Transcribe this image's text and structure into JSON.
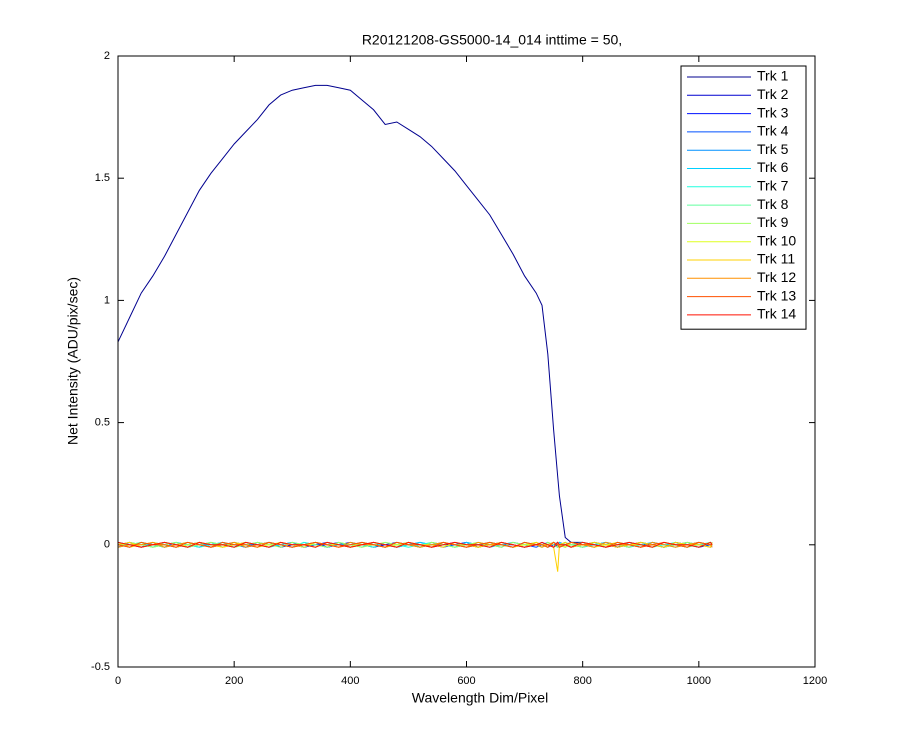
{
  "chart_data": {
    "type": "line",
    "title": "R20121208-GS5000-14_014 inttime = 50,",
    "x_label": "Wavelength Dim/Pixel",
    "y_label": "Net Intensity (ADU/pix/sec)",
    "xlim": [
      0,
      1200
    ],
    "xticks": [
      0,
      200,
      400,
      600,
      800,
      1000,
      1200
    ],
    "ylim": [
      -0.5,
      2
    ],
    "yticks": [
      -0.5,
      0,
      0.5,
      1,
      1.5,
      2
    ],
    "legend_position": "upper-right",
    "x": [
      0,
      20,
      40,
      60,
      80,
      100,
      120,
      140,
      160,
      180,
      200,
      220,
      240,
      260,
      280,
      300,
      320,
      340,
      360,
      380,
      400,
      420,
      440,
      460,
      480,
      500,
      520,
      540,
      560,
      580,
      600,
      620,
      640,
      660,
      680,
      700,
      720,
      730,
      740,
      750,
      757,
      760,
      770,
      780,
      800,
      820,
      840,
      860,
      880,
      900,
      920,
      940,
      960,
      980,
      1000,
      1020,
      1023
    ],
    "series": [
      {
        "name": "Trk 1",
        "color": "#00008f",
        "values": [
          0.83,
          0.93,
          1.03,
          1.1,
          1.18,
          1.27,
          1.36,
          1.45,
          1.52,
          1.58,
          1.64,
          1.69,
          1.74,
          1.8,
          1.84,
          1.86,
          1.87,
          1.88,
          1.88,
          1.87,
          1.86,
          1.82,
          1.78,
          1.72,
          1.73,
          1.7,
          1.67,
          1.63,
          1.58,
          1.53,
          1.47,
          1.41,
          1.35,
          1.27,
          1.19,
          1.1,
          1.03,
          0.98,
          0.78,
          0.47,
          0.28,
          0.2,
          0.03,
          0.01,
          0.01,
          0,
          0.01,
          -0.01,
          0,
          0.01,
          0,
          -0.01,
          0.01,
          0,
          0.01,
          0,
          0
        ]
      },
      {
        "name": "Trk 2",
        "color": "#0000cf",
        "values": [
          0,
          0.01,
          -0.01,
          0,
          0.01,
          0,
          -0.01,
          0.01,
          0,
          0,
          -0.01,
          0.01,
          0,
          0.01,
          -0.01,
          0,
          0,
          0.01,
          -0.01,
          0,
          0.01,
          0,
          -0.01,
          0,
          0.01,
          0,
          -0.01,
          0.01,
          0,
          0,
          0.01,
          -0.01,
          0,
          0.01,
          0,
          -0.01,
          0,
          0.01,
          0,
          -0.01,
          0,
          0.01,
          0,
          -0.01,
          0,
          0.01,
          0,
          -0.01,
          0.01,
          0,
          0,
          -0.01,
          0.01,
          0,
          -0.01,
          0,
          0.01
        ]
      },
      {
        "name": "Trk 3",
        "color": "#0010ff",
        "values": [
          0.01,
          0,
          -0.01,
          0.01,
          0,
          -0.01,
          0,
          0.01,
          -0.01,
          0,
          0.01,
          0,
          0,
          -0.01,
          0.01,
          0,
          -0.01,
          0,
          0.01,
          0,
          -0.01,
          0.01,
          0,
          0,
          -0.01,
          0.01,
          0,
          -0.01,
          0,
          0.01,
          0,
          -0.01,
          0.01,
          0,
          0,
          -0.01,
          0.01,
          0,
          -0.01,
          0,
          0.01,
          0,
          -0.01,
          0.01,
          0,
          0,
          -0.01,
          0.01,
          0,
          -0.01,
          0.01,
          0,
          0,
          -0.01,
          0.01,
          0,
          -0.01
        ]
      },
      {
        "name": "Trk 4",
        "color": "#0050ff",
        "values": [
          -0.01,
          0.01,
          0,
          0,
          -0.01,
          0.01,
          0,
          -0.01,
          0.01,
          0,
          0,
          -0.01,
          0.01,
          0,
          0,
          0.01,
          -0.01,
          0,
          0,
          0.01,
          -0.01,
          0,
          0.01,
          0,
          -0.01,
          0,
          0.01,
          0,
          -0.01,
          0,
          0.01,
          0,
          0,
          -0.01,
          0.01,
          0,
          -0.01,
          0,
          0.01,
          0,
          -0.01,
          0,
          0.01,
          0,
          -0.01,
          0.01,
          0,
          0,
          -0.01,
          0.01,
          0,
          -0.01,
          0,
          0.01,
          0,
          -0.01,
          0
        ]
      },
      {
        "name": "Trk 5",
        "color": "#0090ff",
        "values": [
          0,
          -0.01,
          0.01,
          0,
          0,
          0.01,
          -0.01,
          0,
          0,
          0.01,
          0,
          -0.01,
          0,
          0.01,
          0,
          -0.01,
          0.01,
          0,
          -0.01,
          0,
          0,
          0.01,
          0,
          -0.01,
          0,
          0.01,
          -0.01,
          0,
          0.01,
          0,
          -0.01,
          0,
          0.01,
          0,
          -0.01,
          0.01,
          0,
          0,
          -0.01,
          0.01,
          0,
          -0.01,
          0,
          0.01,
          0,
          -0.01,
          0.01,
          0,
          0,
          -0.01,
          0.01,
          0,
          0,
          -0.01,
          0.01,
          0,
          0
        ]
      },
      {
        "name": "Trk 6",
        "color": "#00d0ff",
        "values": [
          0.01,
          0,
          0,
          -0.01,
          0.01,
          0,
          -0.01,
          0,
          0.01,
          -0.01,
          0,
          0.01,
          0,
          -0.01,
          0,
          0.01,
          0,
          -0.01,
          0.01,
          0,
          0,
          -0.01,
          0.01,
          0,
          -0.01,
          0,
          0.01,
          0,
          0,
          -0.01,
          0.01,
          0,
          -0.01,
          0,
          0.01,
          0,
          0,
          -0.01,
          0.01,
          0,
          -0.01,
          0.01,
          0,
          0,
          -0.01,
          0,
          0.01,
          0,
          -0.01,
          0,
          0.01,
          0,
          -0.01,
          0.01,
          0,
          0,
          0.01
        ]
      },
      {
        "name": "Trk 7",
        "color": "#20ffdf",
        "values": [
          0,
          0,
          0.01,
          -0.01,
          0,
          0.01,
          0,
          -0.01,
          0,
          0.01,
          -0.01,
          0,
          0.01,
          0,
          0,
          -0.01,
          0.01,
          0,
          -0.01,
          0.01,
          0,
          0,
          -0.01,
          0.01,
          0,
          -0.01,
          0,
          0.01,
          0,
          -0.01,
          0,
          0.01,
          0,
          0,
          -0.01,
          0.01,
          0,
          -0.01,
          0,
          0.01,
          0,
          -0.01,
          0.01,
          0,
          0,
          0.01,
          -0.01,
          0,
          0.01,
          0,
          -0.01,
          0,
          0.01,
          0,
          -0.01,
          0.01,
          0
        ]
      },
      {
        "name": "Trk 8",
        "color": "#60ff9f",
        "values": [
          -0.01,
          0,
          0.01,
          0,
          -0.01,
          0,
          0.01,
          0,
          -0.01,
          0.01,
          0,
          0,
          -0.01,
          0.01,
          0,
          -0.01,
          0,
          0.01,
          0,
          0,
          -0.01,
          0.01,
          0,
          -0.01,
          0.01,
          0,
          0,
          -0.01,
          0.01,
          0,
          -0.01,
          0,
          0.01,
          0,
          -0.01,
          0,
          0.01,
          0,
          0,
          -0.01,
          0.01,
          0,
          -0.01,
          0,
          0.01,
          0,
          -0.01,
          0.01,
          0,
          0,
          -0.01,
          0.01,
          0,
          -0.01,
          0,
          0.01,
          0
        ]
      },
      {
        "name": "Trk 9",
        "color": "#a0ff60",
        "values": [
          0,
          0.01,
          0,
          -0.01,
          0,
          0.01,
          -0.01,
          0,
          0.01,
          0,
          -0.01,
          0,
          0.01,
          0,
          -0.01,
          0.01,
          0,
          0,
          -0.01,
          0.01,
          0,
          -0.01,
          0,
          0.01,
          0,
          0,
          -0.01,
          0.01,
          0,
          -0.01,
          0,
          0.01,
          0,
          -0.01,
          0.01,
          0,
          0,
          -0.01,
          0.01,
          0,
          -0.01,
          0,
          0.01,
          0,
          -0.01,
          0.01,
          0,
          0,
          -0.01,
          0.01,
          0,
          -0.01,
          0,
          0.01,
          0,
          -0.01,
          0
        ]
      },
      {
        "name": "Trk 10",
        "color": "#dfff20",
        "values": [
          0.01,
          -0.01,
          0,
          0.01,
          0,
          -0.01,
          0,
          0.01,
          0,
          -0.01,
          0.01,
          0,
          -0.01,
          0,
          0.01,
          0,
          -0.01,
          0.01,
          0,
          0,
          -0.01,
          0.01,
          0,
          -0.01,
          0,
          0.01,
          0,
          -0.01,
          0.01,
          0,
          0,
          -0.01,
          0.01,
          0,
          -0.01,
          0,
          0.01,
          0,
          -0.01,
          0.01,
          0,
          0,
          -0.01,
          0.01,
          0,
          -0.01,
          0,
          0.01,
          0,
          0,
          -0.01,
          0.01,
          0,
          -0.01,
          0.01,
          0,
          0
        ]
      },
      {
        "name": "Trk 11",
        "color": "#ffd000",
        "values": [
          0,
          0.01,
          -0.01,
          0,
          0.01,
          0,
          -0.01,
          0.01,
          0,
          -0.01,
          0,
          0.01,
          0,
          -0.01,
          0.01,
          0,
          0,
          -0.01,
          0.01,
          0,
          -0.01,
          0,
          0.01,
          0,
          -0.01,
          0.01,
          0,
          0,
          -0.01,
          0.01,
          0,
          -0.01,
          0,
          0.01,
          0,
          -0.01,
          0.01,
          0,
          0,
          -0.01,
          -0.11,
          0,
          0.01,
          -0.01,
          0,
          0.01,
          0,
          -0.01,
          0,
          0.01,
          0,
          -0.01,
          0.01,
          0,
          0,
          -0.01,
          0.01
        ]
      },
      {
        "name": "Trk 12",
        "color": "#ff9000",
        "values": [
          -0.01,
          0,
          0,
          0.01,
          -0.01,
          0,
          0.01,
          0,
          -0.01,
          0,
          0.01,
          -0.01,
          0,
          0.01,
          0,
          -0.01,
          0,
          0.01,
          0,
          -0.01,
          0.01,
          0,
          0,
          -0.01,
          0.01,
          0,
          -0.01,
          0,
          0.01,
          0,
          -0.01,
          0.01,
          0,
          0,
          -0.01,
          0.01,
          0,
          -0.01,
          0,
          0.01,
          0,
          -0.01,
          0,
          0.01,
          0,
          -0.01,
          0.01,
          0,
          0,
          -0.01,
          0.01,
          0,
          -0.01,
          0,
          0.01,
          0,
          -0.01
        ]
      },
      {
        "name": "Trk 13",
        "color": "#ff5000",
        "values": [
          0,
          -0.01,
          0.01,
          0,
          0,
          -0.01,
          0.01,
          0,
          -0.01,
          0.01,
          0,
          0,
          -0.01,
          0.01,
          0,
          -0.01,
          0,
          0.01,
          0,
          -0.01,
          0,
          0.01,
          0,
          -0.01,
          0.01,
          0,
          0,
          -0.01,
          0.01,
          0,
          -0.01,
          0,
          0.01,
          0,
          -0.01,
          0.01,
          0,
          0,
          -0.01,
          0.01,
          0,
          -0.01,
          0,
          0.01,
          0,
          0,
          -0.01,
          0.01,
          0,
          -0.01,
          0,
          0.01,
          0,
          -0.01,
          0.01,
          0,
          0
        ]
      },
      {
        "name": "Trk 14",
        "color": "#ff1000",
        "values": [
          0.01,
          0,
          -0.01,
          0,
          0.01,
          0,
          -0.01,
          0.01,
          0,
          0,
          -0.01,
          0.01,
          0,
          -0.01,
          0.01,
          0,
          0,
          -0.01,
          0.01,
          0,
          -0.01,
          0,
          0.01,
          0,
          -0.01,
          0.01,
          0,
          -0.01,
          0,
          0.01,
          0,
          0,
          -0.01,
          0.01,
          0,
          -0.01,
          0,
          0.01,
          0,
          -0.01,
          0.01,
          0,
          0,
          -0.01,
          0.01,
          0,
          -0.01,
          0,
          0.01,
          0,
          -0.01,
          0.01,
          0,
          0,
          -0.01,
          0.01,
          0
        ]
      }
    ]
  }
}
